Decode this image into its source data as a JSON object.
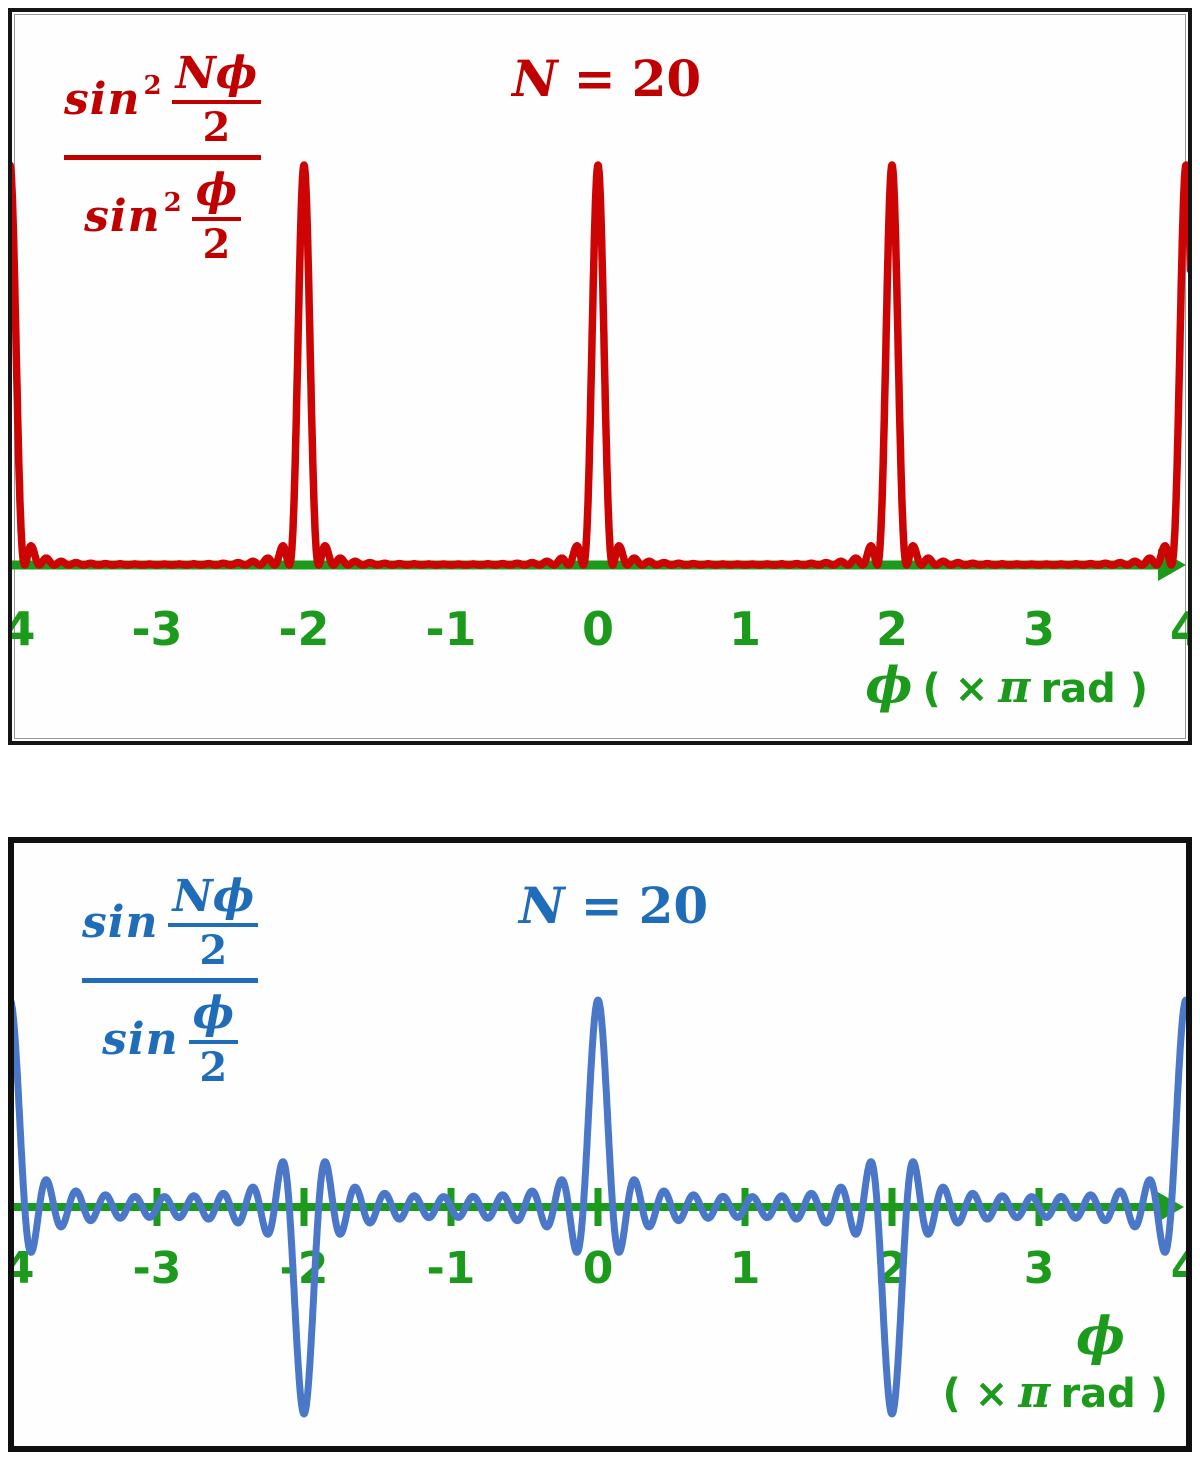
{
  "figures": [
    {
      "title": {
        "lhs": "N",
        "eq": "=",
        "value": "20"
      },
      "formula": {
        "num_func": "sin",
        "num_exp": "2",
        "num_frac_num": "Nϕ",
        "num_frac_den": "2",
        "den_func": "sin",
        "den_exp": "2",
        "den_frac_num": "ϕ",
        "den_frac_den": "2"
      },
      "axis_title": {
        "phi": "ϕ",
        "unit_open": "( ×",
        "pi": "π",
        "unit_close": "rad )"
      },
      "colors": {
        "curve": "#cc0404",
        "text": "#c00000",
        "axis": "#1b9a1b"
      }
    },
    {
      "title": {
        "lhs": "N",
        "eq": "=",
        "value": "20"
      },
      "formula": {
        "num_func": "sin",
        "num_frac_num": "Nϕ",
        "num_frac_den": "2",
        "den_func": "sin",
        "den_frac_num": "ϕ",
        "den_frac_den": "2"
      },
      "axis_title": {
        "phi": "ϕ",
        "unit_open": "( ×",
        "pi": "π",
        "unit_close": "rad )"
      },
      "colors": {
        "curve": "#4a77c8",
        "text": "#1f6db8",
        "axis": "#1b9a1b"
      }
    }
  ],
  "chart_data": [
    {
      "type": "line",
      "title": "N = 20",
      "series": [
        {
          "name": "sin²(Nϕ/2) / sin²(ϕ/2)",
          "function": "(sin(N*phi/2)/sin(phi/2))^2",
          "N": 20
        }
      ],
      "x_unit": "π rad",
      "xlabel": "ϕ ( × π rad )",
      "x_range": [
        -4,
        4
      ],
      "x_ticks": [
        -4,
        -3,
        -2,
        -1,
        0,
        1,
        2,
        3,
        4
      ],
      "y_range": [
        0,
        400
      ],
      "principal_maxima": {
        "x": [
          -4,
          -2,
          0,
          2,
          4
        ],
        "value": 400
      },
      "secondary_maxima_height_approx": 18,
      "grid": false,
      "legend": false,
      "color": "#cc0404",
      "axis_color": "#1b9a1b"
    },
    {
      "type": "line",
      "title": "N = 20",
      "series": [
        {
          "name": "sin(Nϕ/2) / sin(ϕ/2)",
          "function": "sin(N*phi/2)/sin(phi/2)",
          "N": 20
        }
      ],
      "x_unit": "π rad",
      "xlabel": "ϕ ( × π rad )",
      "x_range": [
        -4,
        4
      ],
      "x_ticks": [
        -4,
        -3,
        -2,
        -1,
        0,
        1,
        2,
        3,
        4
      ],
      "y_range": [
        -20,
        20
      ],
      "extrema": [
        {
          "x": -4,
          "value": 20
        },
        {
          "x": -2,
          "value": -20
        },
        {
          "x": 0,
          "value": 20
        },
        {
          "x": 2,
          "value": -20
        },
        {
          "x": 4,
          "value": 20
        }
      ],
      "grid": false,
      "legend": false,
      "color": "#4a77c8",
      "axis_color": "#1b9a1b"
    }
  ]
}
